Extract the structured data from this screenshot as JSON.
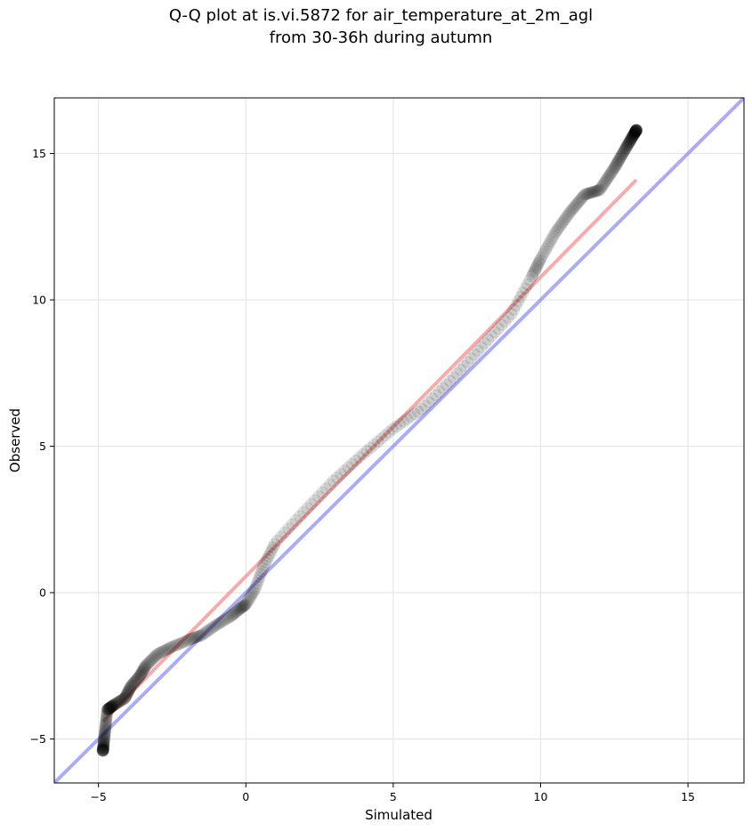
{
  "chart_data": {
    "type": "scatter",
    "title_lines": [
      "Q-Q plot at is.vi.5872 for air_temperature_at_2m_agl",
      "from 30-36h during autumn"
    ],
    "xlabel": "Simulated",
    "ylabel": "Observed",
    "xlim": [
      -6.5,
      16.9
    ],
    "ylim": [
      -6.5,
      16.9
    ],
    "xticks": [
      -5,
      0,
      5,
      10,
      15
    ],
    "yticks": [
      -5,
      0,
      5,
      10,
      15
    ],
    "xtick_labels": [
      "−5",
      "0",
      "5",
      "10",
      "15"
    ],
    "ytick_labels": [
      "−5",
      "0",
      "5",
      "10",
      "15"
    ],
    "grid": true,
    "colors": {
      "points": "#000000",
      "fit_line": "#f08080",
      "identity_line": "#8080f0",
      "grid": "#e6e6e6"
    },
    "fit_line": {
      "x": [
        -4.85,
        13.25
      ],
      "y": [
        -4.4,
        14.1
      ]
    },
    "identity_line": {
      "x": [
        -6.5,
        16.9
      ],
      "y": [
        -6.5,
        16.9
      ]
    },
    "quantile_knots": {
      "simulated": [
        -4.85,
        -4.7,
        -4.5,
        -4.1,
        -3.9,
        -3.6,
        -3.4,
        -3.0,
        -2.5,
        -1.9,
        -1.5,
        -1.0,
        -0.5,
        -0.2,
        0.0,
        0.3,
        0.6,
        1.0,
        2.0,
        3.0,
        4.0,
        5.0,
        6.0,
        7.0,
        8.0,
        9.0,
        9.7,
        10.0,
        10.5,
        11.0,
        11.5,
        12.0,
        12.5,
        12.9,
        13.25
      ],
      "observed": [
        -5.4,
        -4.0,
        -3.85,
        -3.6,
        -3.2,
        -2.85,
        -2.5,
        -2.1,
        -1.85,
        -1.6,
        -1.45,
        -1.1,
        -0.8,
        -0.55,
        -0.4,
        0.1,
        0.9,
        1.7,
        2.8,
        3.85,
        4.75,
        5.6,
        6.3,
        7.3,
        8.4,
        9.5,
        10.8,
        11.4,
        12.3,
        13.0,
        13.6,
        13.75,
        14.5,
        15.2,
        15.8
      ]
    },
    "n_points": 420
  }
}
